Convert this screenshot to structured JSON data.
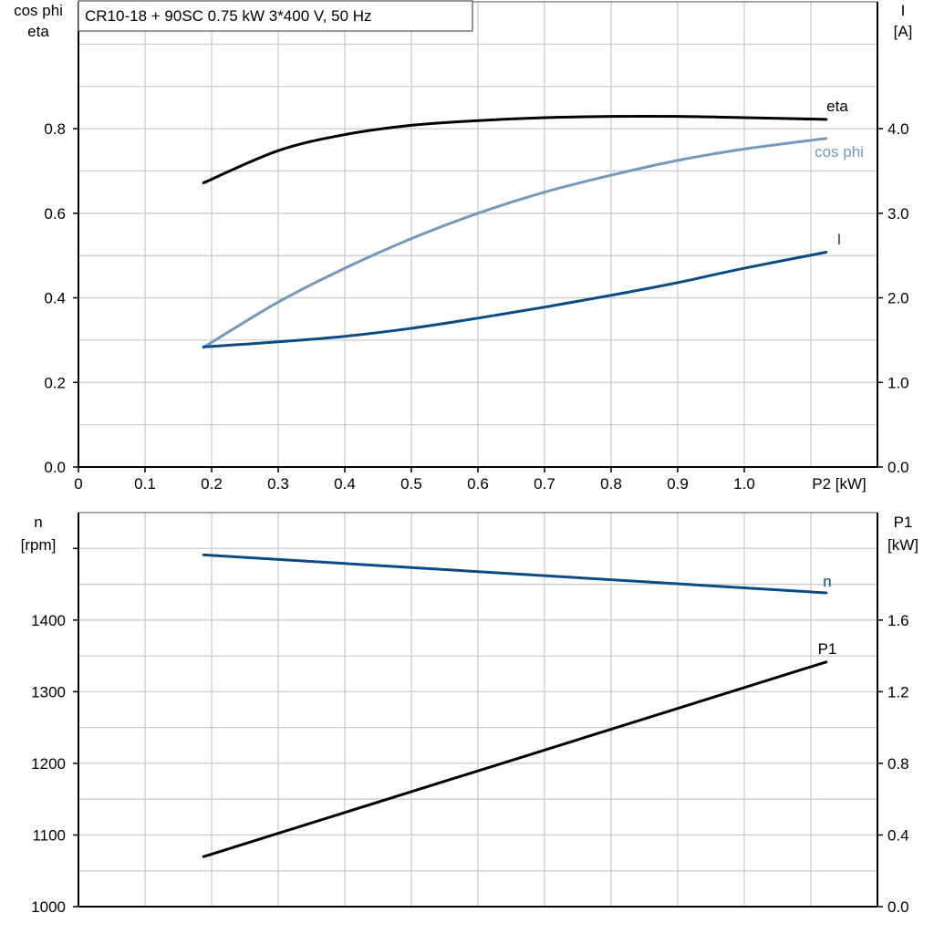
{
  "title": "CR10-18 + 90SC   0.75 kW   3*400 V, 50 Hz",
  "colors": {
    "eta": "#000000",
    "cos_phi": "#7499bb",
    "I": "#0b4a85",
    "n": "#0b4a85",
    "P1": "#000000",
    "grid": "#cccccc"
  },
  "chart_data": [
    {
      "type": "line",
      "xlabel": "P2 [kW]",
      "ylabel_left": [
        "cos phi",
        "eta"
      ],
      "ylabel_right": [
        "I",
        "[A]"
      ],
      "xlim": [
        0,
        1.2
      ],
      "ylim_left": [
        0,
        1.1
      ],
      "ylim_right": [
        0,
        5.5
      ],
      "grid": true,
      "x_ticks": [
        "0",
        "0.1",
        "0.2",
        "0.3",
        "0.4",
        "0.5",
        "0.6",
        "0.7",
        "0.8",
        "0.9",
        "1.0"
      ],
      "left_ticks": [
        "0.0",
        "0.2",
        "0.4",
        "0.6",
        "0.8"
      ],
      "right_ticks": [
        "0.0",
        "1.0",
        "2.0",
        "3.0",
        "4.0"
      ],
      "series": [
        {
          "name": "eta",
          "axis": "left",
          "x": [
            0.188,
            0.3,
            0.4,
            0.5,
            0.6,
            0.7,
            0.8,
            0.9,
            1.0,
            1.123
          ],
          "y": [
            0.672,
            0.748,
            0.786,
            0.808,
            0.819,
            0.826,
            0.829,
            0.829,
            0.826,
            0.822
          ]
        },
        {
          "name": "cos phi",
          "axis": "left",
          "x": [
            0.188,
            0.3,
            0.4,
            0.5,
            0.6,
            0.7,
            0.8,
            0.9,
            1.0,
            1.123
          ],
          "y": [
            0.283,
            0.39,
            0.47,
            0.54,
            0.6,
            0.65,
            0.69,
            0.725,
            0.752,
            0.777
          ]
        },
        {
          "name": "I",
          "axis": "right",
          "x": [
            0.188,
            0.3,
            0.4,
            0.5,
            0.6,
            0.7,
            0.8,
            0.9,
            1.0,
            1.123
          ],
          "y": [
            1.42,
            1.48,
            1.545,
            1.64,
            1.76,
            1.89,
            2.03,
            2.18,
            2.35,
            2.54
          ]
        }
      ]
    },
    {
      "type": "line",
      "ylabel_left": [
        "n",
        "[rpm]"
      ],
      "ylabel_right": [
        "P1",
        "[kW]"
      ],
      "xlim": [
        0,
        1.2
      ],
      "ylim_left": [
        1000,
        1550
      ],
      "ylim_right": [
        0,
        2.2
      ],
      "grid": true,
      "left_ticks": [
        "1000",
        "1100",
        "1200",
        "1300",
        "1400"
      ],
      "right_ticks": [
        "0.0",
        "0.4",
        "0.8",
        "1.2",
        "1.6"
      ],
      "series": [
        {
          "name": "n",
          "axis": "left",
          "x": [
            0.188,
            1.123
          ],
          "y": [
            1491,
            1438
          ]
        },
        {
          "name": "P1",
          "axis": "right",
          "x": [
            0.188,
            1.123
          ],
          "y": [
            0.279,
            1.366
          ]
        }
      ]
    }
  ]
}
